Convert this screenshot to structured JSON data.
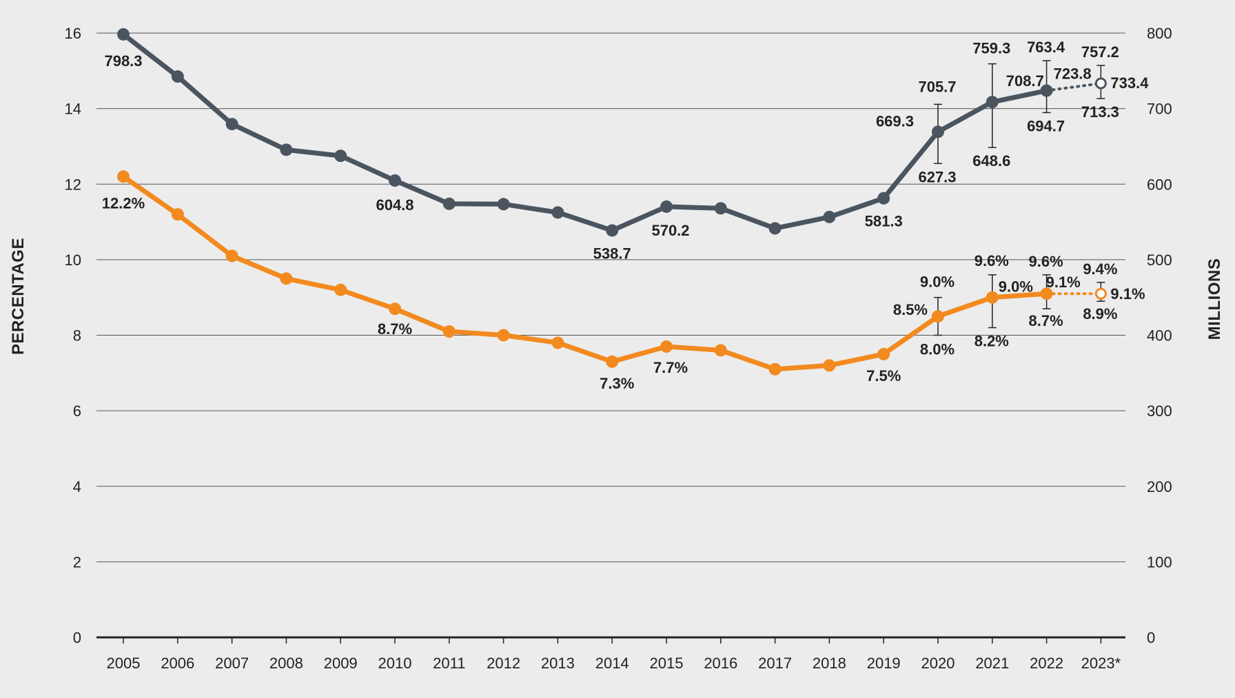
{
  "chart_data": {
    "type": "line",
    "categories": [
      "2005",
      "2006",
      "2007",
      "2008",
      "2009",
      "2010",
      "2011",
      "2012",
      "2013",
      "2014",
      "2015",
      "2016",
      "2017",
      "2018",
      "2019",
      "2020",
      "2021",
      "2022",
      "2023*"
    ],
    "ylabel_left": "PERCENTAGE",
    "ylabel_right": "MILLIONS",
    "ylim_left": [
      0,
      16
    ],
    "ylim_right": [
      0,
      800
    ],
    "yticks_left": [
      0,
      2,
      4,
      6,
      8,
      10,
      12,
      14,
      16
    ],
    "yticks_right": [
      0,
      100,
      200,
      300,
      400,
      500,
      600,
      700,
      800
    ],
    "grid": true,
    "series": [
      {
        "axis": "right",
        "color": "#4a5560",
        "values": [
          798.3,
          742.5,
          679.5,
          645.5,
          637.5,
          604.8,
          574.0,
          573.5,
          562.5,
          538.7,
          570.2,
          568.0,
          541.5,
          556.5,
          581.3,
          669.3,
          708.7,
          723.8,
          733.4
        ],
        "projected_from_index": 17,
        "labels": [
          {
            "i": 0,
            "text": "798.3"
          },
          {
            "i": 5,
            "text": "604.8"
          },
          {
            "i": 9,
            "text": "538.7"
          },
          {
            "i": 10,
            "text": "570.2"
          },
          {
            "i": 14,
            "text": "581.3"
          },
          {
            "i": 15,
            "text": "669.3"
          },
          {
            "i": 16,
            "text": "708.7"
          },
          {
            "i": 17,
            "text": "723.8"
          },
          {
            "i": 18,
            "text": "733.4"
          }
        ],
        "error_bars": [
          {
            "i": 15,
            "low": 627.3,
            "high": 705.7,
            "low_text": "627.3",
            "high_text": "705.7"
          },
          {
            "i": 16,
            "low": 648.6,
            "high": 759.3,
            "low_text": "648.6",
            "high_text": "759.3"
          },
          {
            "i": 17,
            "low": 694.7,
            "high": 763.4,
            "low_text": "694.7",
            "high_text": "763.4"
          },
          {
            "i": 18,
            "low": 713.3,
            "high": 757.2,
            "low_text": "713.3",
            "high_text": "757.2"
          }
        ]
      },
      {
        "axis": "left",
        "color": "#f28a1f",
        "values": [
          12.2,
          11.2,
          10.1,
          9.5,
          9.2,
          8.7,
          8.1,
          8.0,
          7.8,
          7.3,
          7.7,
          7.6,
          7.1,
          7.2,
          7.5,
          8.5,
          9.0,
          9.1,
          9.1
        ],
        "projected_from_index": 17,
        "labels": [
          {
            "i": 0,
            "text": "12.2%"
          },
          {
            "i": 5,
            "text": "8.7%"
          },
          {
            "i": 9,
            "text": "7.3%"
          },
          {
            "i": 10,
            "text": "7.7%"
          },
          {
            "i": 14,
            "text": "7.5%"
          },
          {
            "i": 15,
            "text": "8.5%"
          },
          {
            "i": 16,
            "text": "9.0%"
          },
          {
            "i": 17,
            "text": "9.1%"
          },
          {
            "i": 18,
            "text": "9.1%"
          }
        ],
        "error_bars": [
          {
            "i": 15,
            "low": 8.0,
            "high": 9.0,
            "low_text": "8.0%",
            "high_text": "9.0%"
          },
          {
            "i": 16,
            "low": 8.2,
            "high": 9.6,
            "low_text": "8.2%",
            "high_text": "9.6%"
          },
          {
            "i": 17,
            "low": 8.7,
            "high": 9.6,
            "low_text": "8.7%",
            "high_text": "9.6%"
          },
          {
            "i": 18,
            "low": 8.9,
            "high": 9.4,
            "low_text": "8.9%",
            "high_text": "9.4%"
          }
        ]
      }
    ]
  }
}
